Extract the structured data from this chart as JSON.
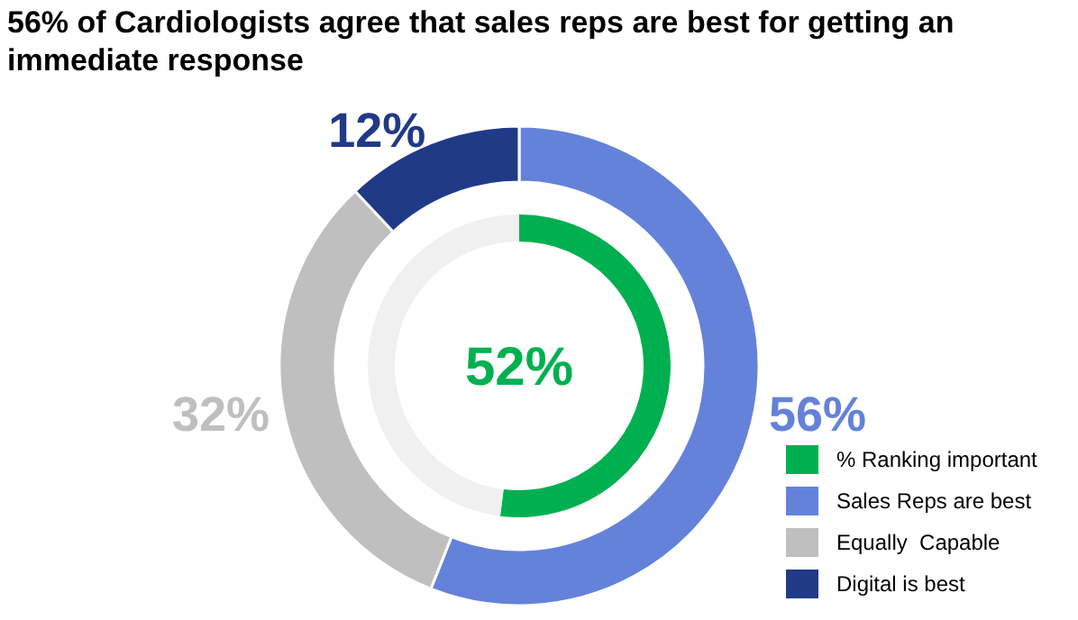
{
  "chart_data": [
    {
      "type": "donut",
      "title": "56% of Cardiologists agree that sales reps are best for getting an immediate response",
      "categories": [
        "Sales Reps are best",
        "Equally  Capable",
        "Digital is best"
      ],
      "values": [
        56,
        32,
        12
      ],
      "colors": [
        "#6482d9",
        "#bfbfbf",
        "#213a87"
      ],
      "value_labels": [
        "56%",
        "32%",
        "12%"
      ],
      "legend": "bottom right"
    },
    {
      "type": "donut",
      "categories": [
        "% Ranking important",
        null
      ],
      "values": [
        52,
        48
      ],
      "colors": [
        "#00b050",
        "#f0f0f0"
      ],
      "value_labels": [
        "52%",
        null
      ],
      "legend": "bottom right"
    }
  ]
}
